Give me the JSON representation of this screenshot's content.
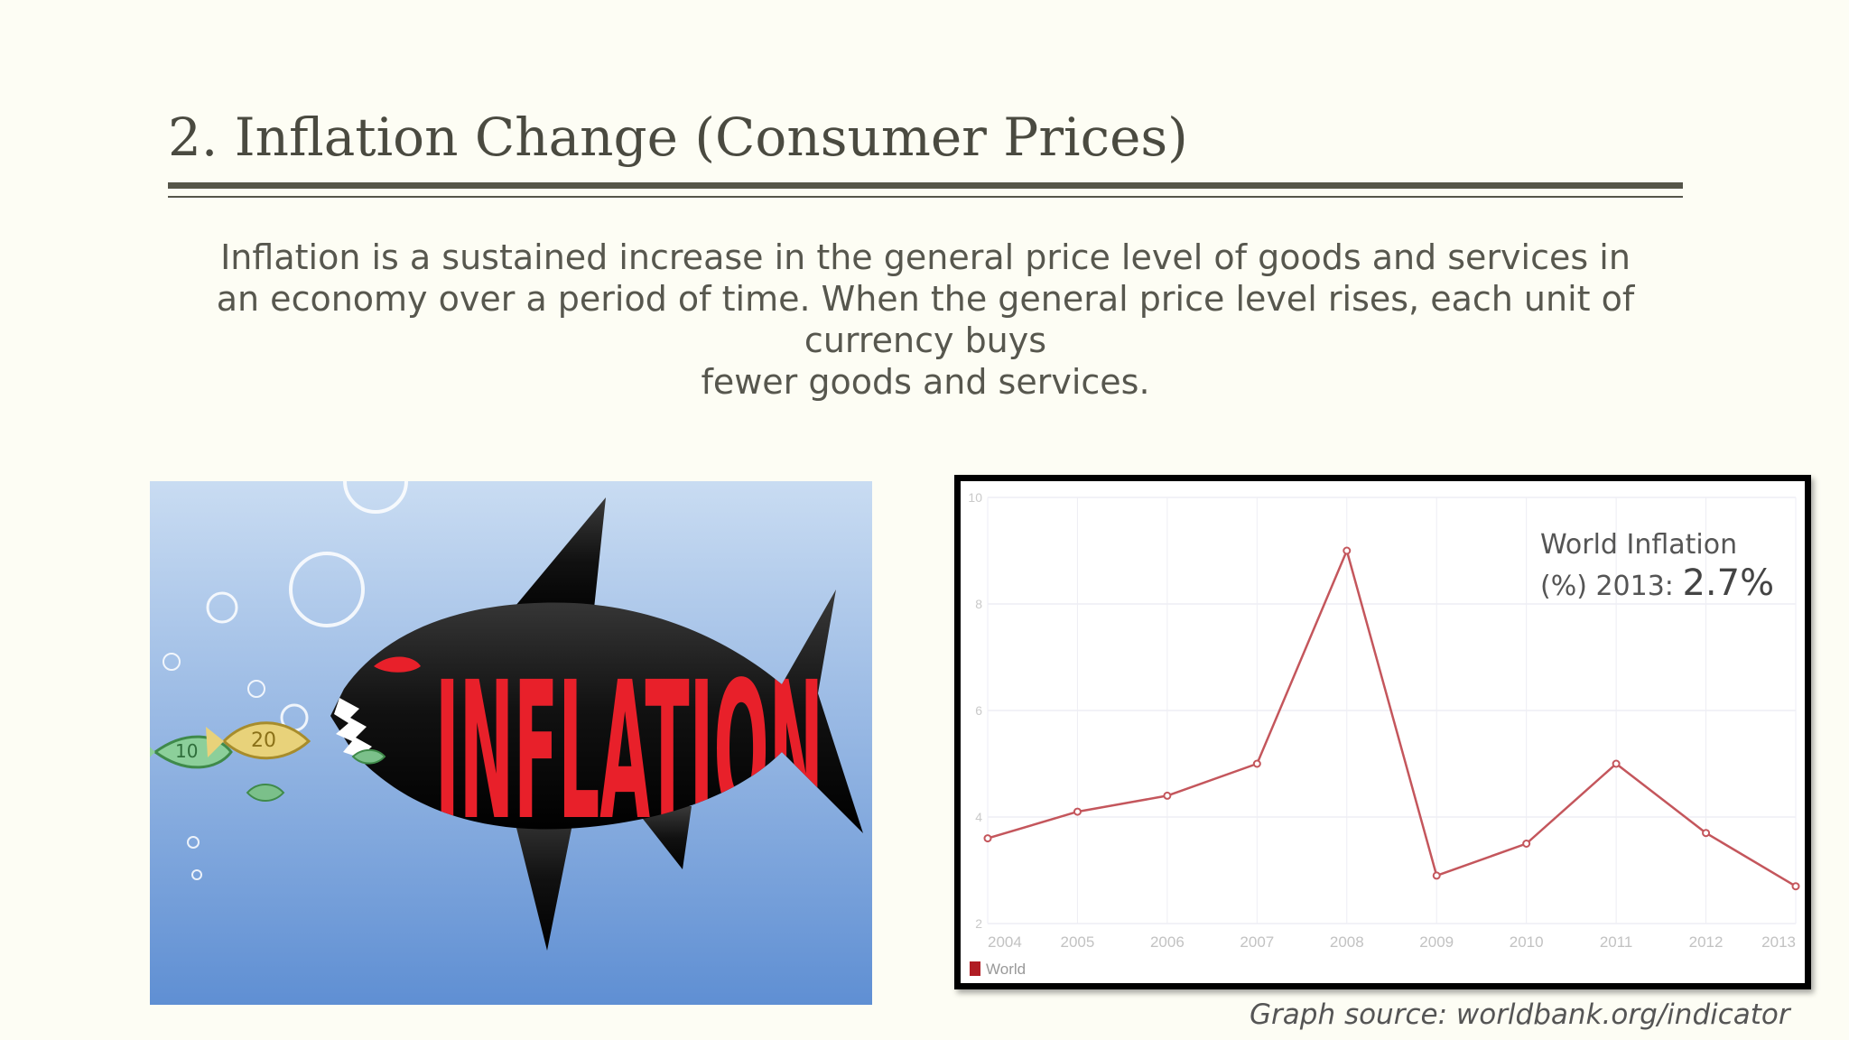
{
  "slide": {
    "title": "2. Inflation Change (Consumer Prices)",
    "body_line1": "Inflation is a sustained increase in the general price level of goods and services in",
    "body_line2": "an economy over a period of time. When the general price level rises, each unit of currency buys",
    "body_line3": "fewer goods and services.",
    "annotation_line1": "World Inflation",
    "annotation_line2_prefix": "(%) 2013: ",
    "annotation_value": "2.7%",
    "source": "Graph source: worldbank.org/indicator"
  },
  "image": {
    "text": "INFLATION",
    "bill_labels": [
      "10",
      "20"
    ]
  },
  "colors": {
    "series": "#c4565c",
    "legend": "#b01c24",
    "shark_text": "#e8202a",
    "shark_body": "#111111",
    "water_top": "#c9dcf2",
    "water_bottom": "#5f8fd3"
  },
  "chart_data": {
    "type": "line",
    "x": [
      "2004",
      "2005",
      "2006",
      "2007",
      "2008",
      "2009",
      "2010",
      "2011",
      "2012",
      "2013"
    ],
    "series": [
      {
        "name": "World",
        "values": [
          3.6,
          4.1,
          4.4,
          5.0,
          9.0,
          2.9,
          3.5,
          5.0,
          3.7,
          2.7
        ]
      }
    ],
    "y_ticks": [
      "2",
      "4",
      "6",
      "8",
      "10"
    ],
    "ylim": [
      2,
      10
    ],
    "grid": true,
    "legend_position": "bottom-left",
    "title": "",
    "xlabel": "",
    "ylabel": ""
  }
}
